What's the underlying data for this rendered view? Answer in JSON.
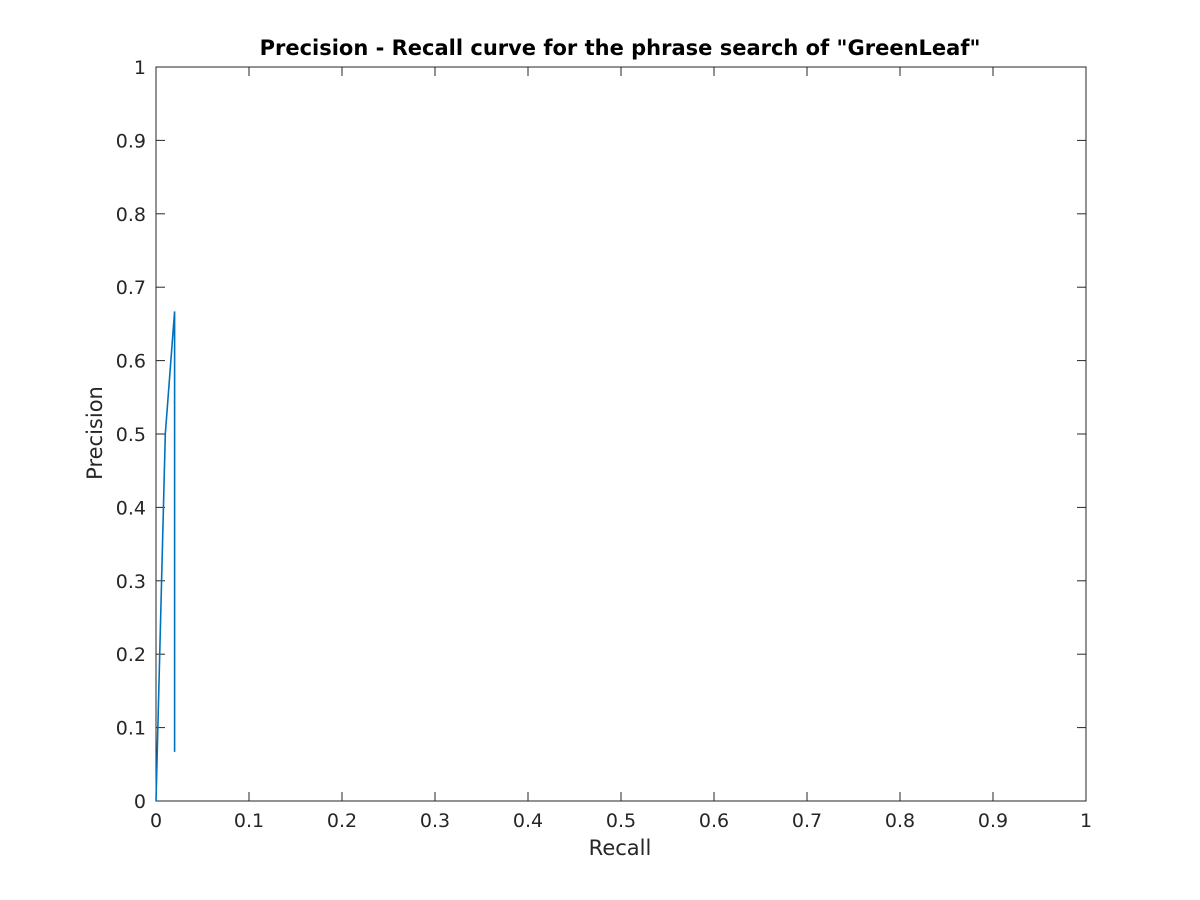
{
  "chart_data": {
    "type": "line",
    "title": "Precision - Recall curve for the phrase search of \"GreenLeaf\"",
    "xlabel": "Recall",
    "ylabel": "Precision",
    "xlim": [
      0,
      1
    ],
    "ylim": [
      0,
      1
    ],
    "xticks": [
      "0",
      "0.1",
      "0.2",
      "0.3",
      "0.4",
      "0.5",
      "0.6",
      "0.7",
      "0.8",
      "0.9",
      "1"
    ],
    "yticks": [
      "0",
      "0.1",
      "0.2",
      "0.3",
      "0.4",
      "0.5",
      "0.6",
      "0.7",
      "0.8",
      "0.9",
      "1"
    ],
    "grid": false,
    "box": true,
    "series": [
      {
        "color": "#0072BD",
        "x": [
          0,
          0.01,
          0.01,
          0.02,
          0.02
        ],
        "y": [
          0,
          0.5,
          0.5,
          0.667,
          0.067
        ]
      }
    ]
  }
}
